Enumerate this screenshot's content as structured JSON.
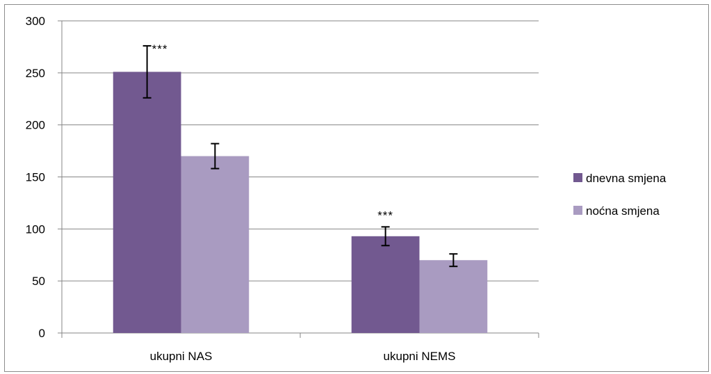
{
  "chart_data": {
    "type": "bar",
    "categories": [
      "ukupni NAS",
      "ukupni NEMS"
    ],
    "series": [
      {
        "name": "dnevna smjena",
        "values": [
          251,
          93
        ],
        "errors": [
          25,
          9
        ],
        "significance": [
          "***",
          "***"
        ],
        "color": "#725990"
      },
      {
        "name": "noćna smjena",
        "values": [
          170,
          70
        ],
        "errors": [
          12,
          6
        ],
        "significance": [
          "",
          ""
        ],
        "color": "#a99bc1"
      }
    ],
    "ylim": [
      0,
      300
    ],
    "yticks": [
      0,
      50,
      100,
      150,
      200,
      250,
      300
    ],
    "grid": true,
    "legend": "right",
    "title": "",
    "xlabel": "",
    "ylabel": ""
  }
}
